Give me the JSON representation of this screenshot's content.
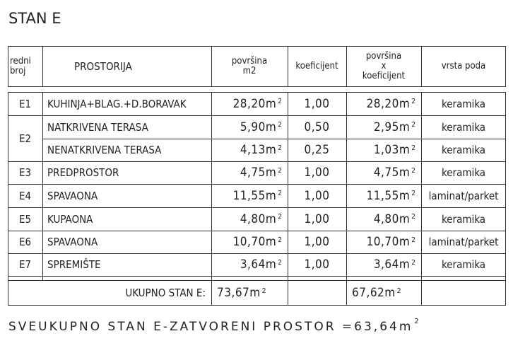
{
  "title": "STAN E",
  "headers": {
    "redni_broj": [
      "redni",
      "broj"
    ],
    "prostorija": "PROSTORIJA",
    "povrsina": [
      "površina",
      "m2"
    ],
    "koeficijent": "koeficijent",
    "povrsina_x_koef": [
      "površina",
      "x",
      "koeficijent"
    ],
    "vrsta_poda": "vrsta poda"
  },
  "unit": "m",
  "unit_exp": "2",
  "rows": [
    {
      "id": "E1",
      "name": "KUHINJA+BLAG.+D.BORAVAK",
      "area": "28,20",
      "coef": "1,00",
      "weighted": "28,20",
      "floor": "keramika"
    },
    {
      "id": "E2",
      "name": "NATKRIVENA TERASA",
      "area": "5,90",
      "coef": "0,50",
      "weighted": "2,95",
      "floor": "keramika"
    },
    {
      "id": "",
      "name": "NENATKRIVENA TERASA",
      "area": "4,13",
      "coef": "0,25",
      "weighted": "1,03",
      "floor": "keramika"
    },
    {
      "id": "E3",
      "name": "PREDPROSTOR",
      "area": "4,75",
      "coef": "1,00",
      "weighted": "4,75",
      "floor": "keramika"
    },
    {
      "id": "E4",
      "name": "SPAVAONA",
      "area": "11,55",
      "coef": "1,00",
      "weighted": "11,55",
      "floor": "laminat/parket"
    },
    {
      "id": "E5",
      "name": "KUPAONA",
      "area": "4,80",
      "coef": "1,00",
      "weighted": "4,80",
      "floor": "keramika"
    },
    {
      "id": "E6",
      "name": "SPAVAONA",
      "area": "10,70",
      "coef": "1,00",
      "weighted": "10,70",
      "floor": "laminat/parket"
    },
    {
      "id": "E7",
      "name": "SPREMIŠTE",
      "area": "3,64",
      "coef": "1,00",
      "weighted": "3,64",
      "floor": "keramika"
    }
  ],
  "total": {
    "label": "UKUPNO STAN E:",
    "area": "73,67",
    "weighted": "67,62"
  },
  "footer": {
    "text": "SVEUKUPNO STAN E-ZATVORENI PROSTOR =63,64m",
    "exp": "2"
  }
}
